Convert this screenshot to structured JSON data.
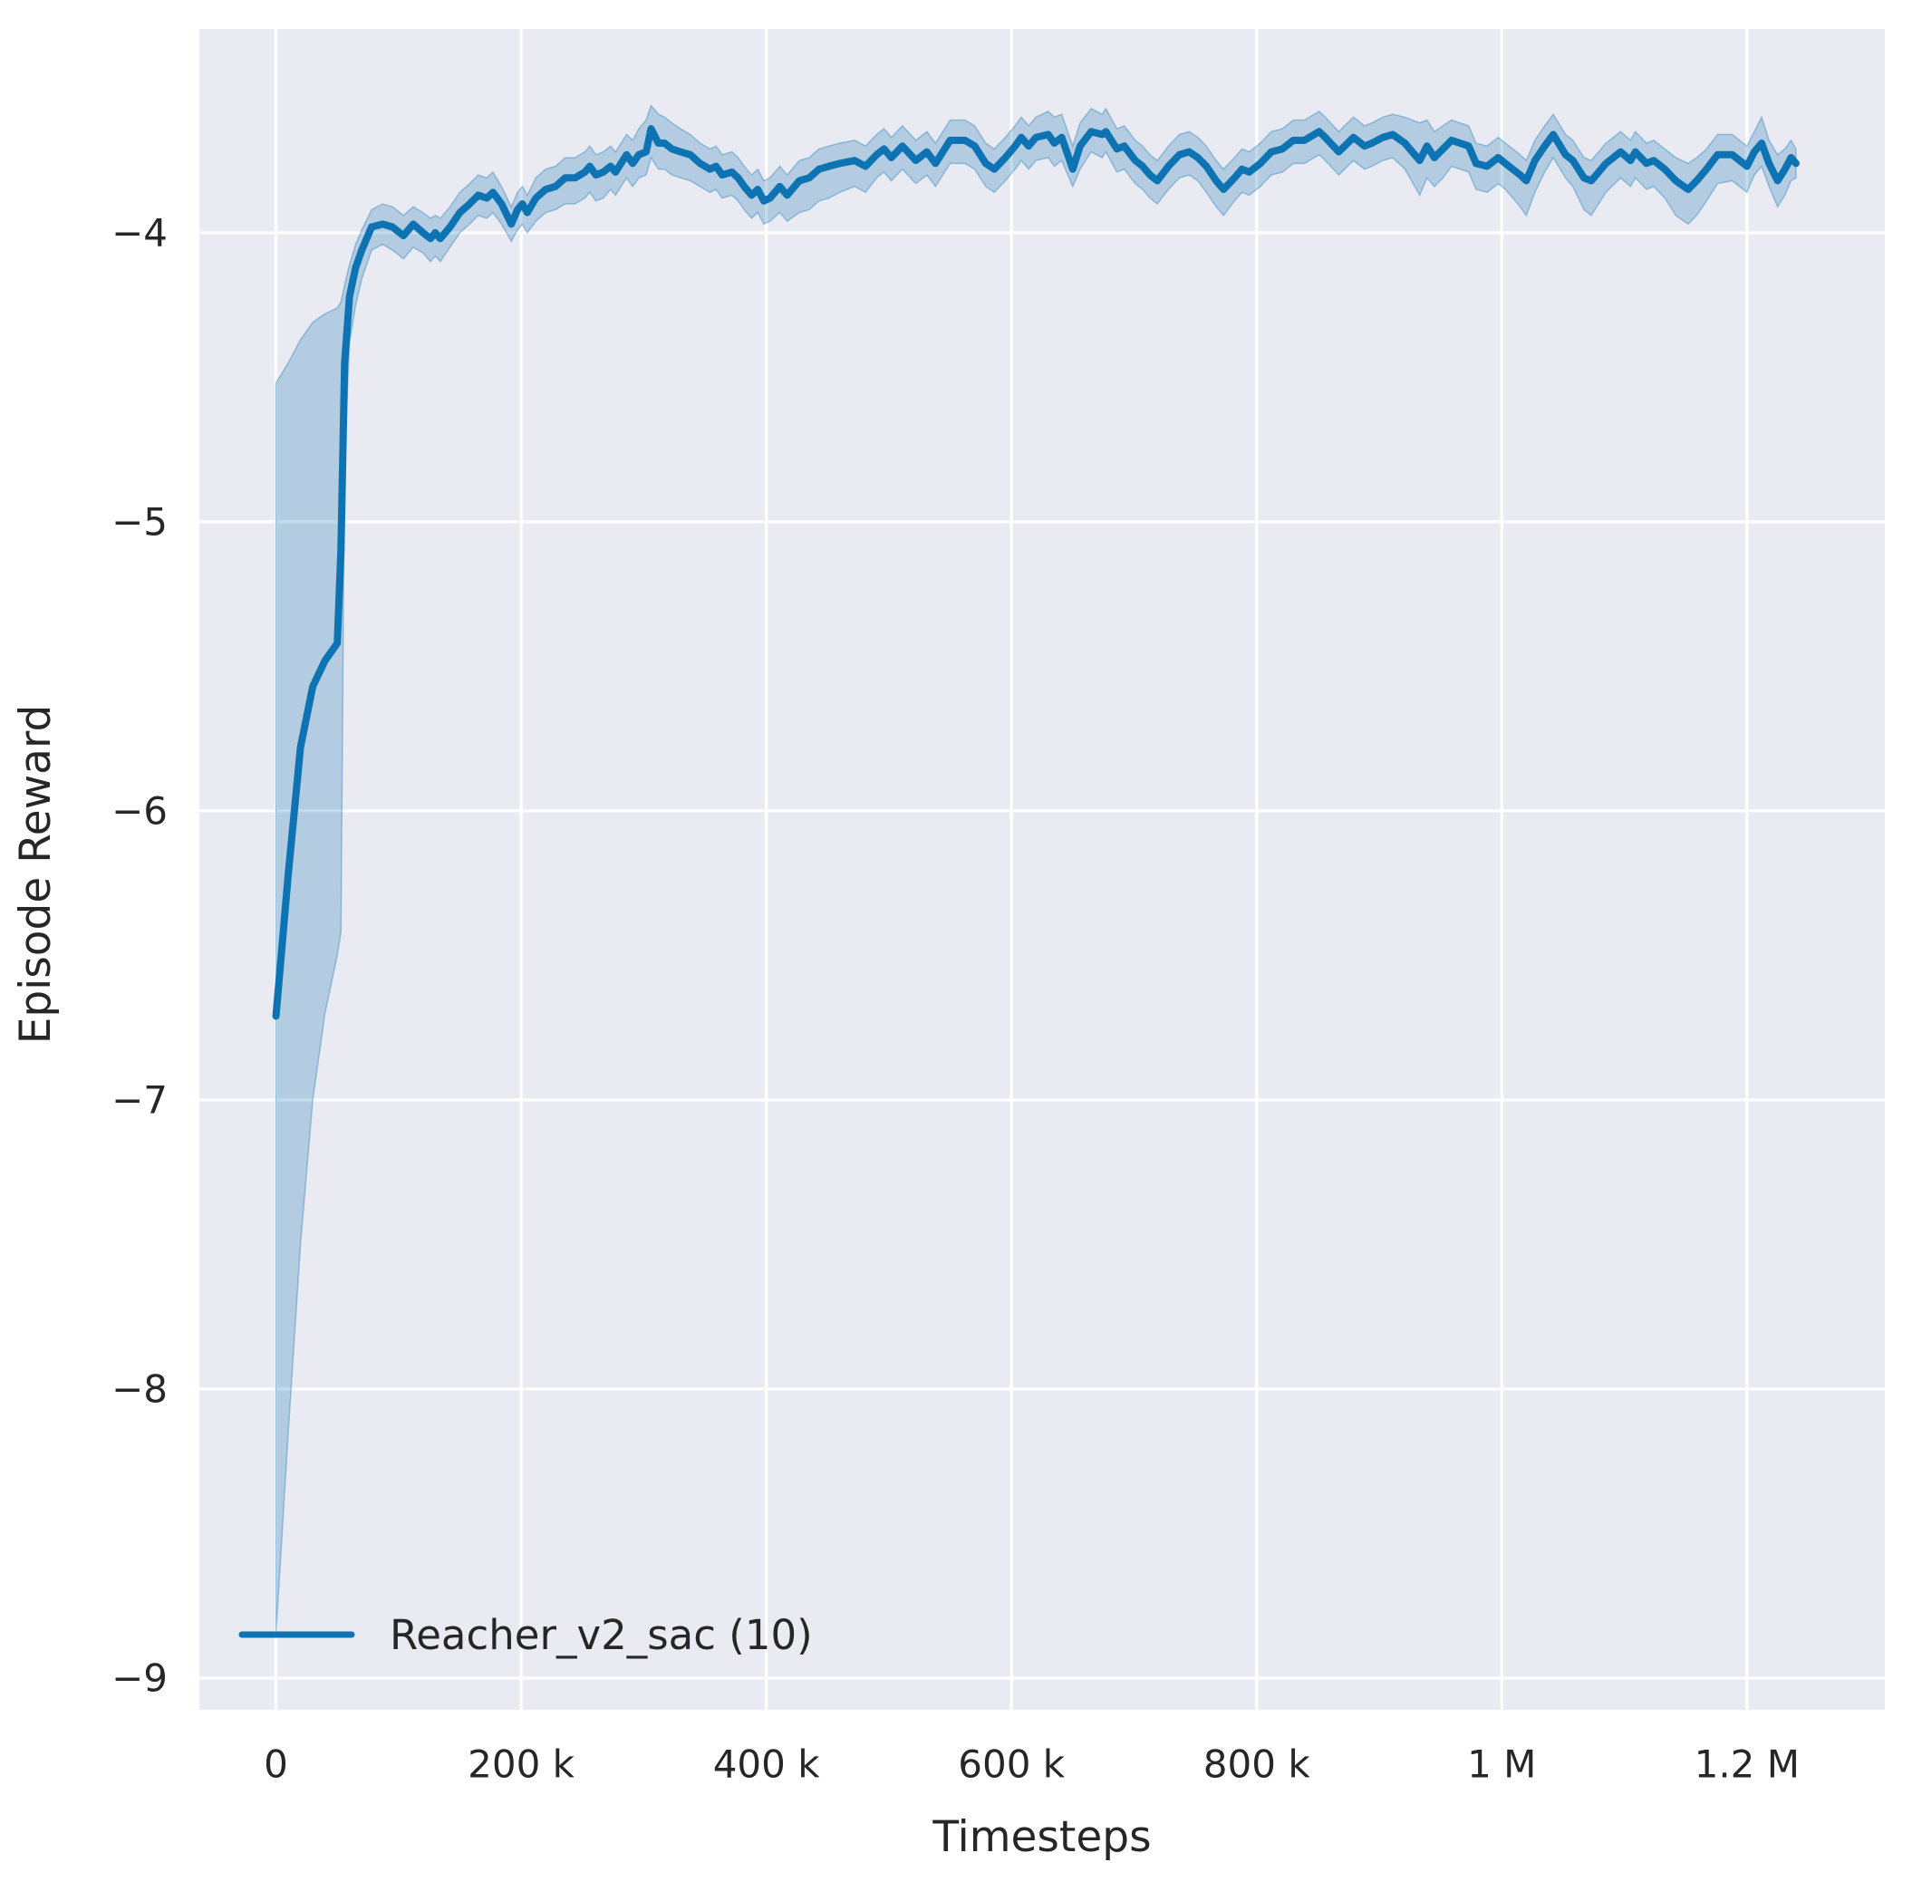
{
  "style": {
    "figure_background": "#ffffff",
    "axes_background": "#eaeaf2",
    "grid_color": "#ffffff",
    "text_color": "#262626",
    "line_color": "#0e73b2",
    "band_fill": "rgba(14,115,178,0.25)",
    "band_edge": "rgba(14,115,178,0.35)"
  },
  "chart_data": {
    "type": "line",
    "title": "",
    "xlabel": "Timesteps",
    "ylabel": "Episode Reward",
    "grid": true,
    "legend_position": "lower left",
    "legend": [
      {
        "label": "Reacher_v2_sac (10)",
        "color": "#0e73b2"
      }
    ],
    "xlim": [
      -62500,
      1312500
    ],
    "ylim": [
      -9.11,
      -3.295
    ],
    "x_ticks": [
      {
        "value": 0,
        "label": "0"
      },
      {
        "value": 200000,
        "label": "200 k"
      },
      {
        "value": 400000,
        "label": "400 k"
      },
      {
        "value": 600000,
        "label": "600 k"
      },
      {
        "value": 800000,
        "label": "800 k"
      },
      {
        "value": 1000000,
        "label": "1 M"
      },
      {
        "value": 1200000,
        "label": "1.2 M"
      }
    ],
    "y_ticks": [
      {
        "value": -4,
        "label": "−4"
      },
      {
        "value": -5,
        "label": "−5"
      },
      {
        "value": -6,
        "label": "−6"
      },
      {
        "value": -7,
        "label": "−7"
      },
      {
        "value": -8,
        "label": "−8"
      },
      {
        "value": -9,
        "label": "−9"
      }
    ],
    "series": [
      {
        "name": "Reacher_v2_sac (10)",
        "x_unit": "thousand timesteps",
        "note": "points are [x_thousand_timesteps, mean, band_low, band_high]",
        "points": [
          [
            0,
            -6.71,
            -8.85,
            -4.52
          ],
          [
            10,
            -6.22,
            -8.15,
            -4.45
          ],
          [
            20,
            -5.78,
            -7.5,
            -4.37
          ],
          [
            30,
            -5.57,
            -7.0,
            -4.31
          ],
          [
            40,
            -5.48,
            -6.7,
            -4.28
          ],
          [
            50,
            -5.42,
            -6.5,
            -4.26
          ],
          [
            53,
            -5.1,
            -6.42,
            -4.24
          ],
          [
            56,
            -4.45,
            -4.78,
            -4.18
          ],
          [
            60,
            -4.22,
            -4.38,
            -4.11
          ],
          [
            65,
            -4.12,
            -4.25,
            -4.04
          ],
          [
            70,
            -4.06,
            -4.16,
            -3.99
          ],
          [
            78,
            -3.98,
            -4.06,
            -3.92
          ],
          [
            87,
            -3.97,
            -4.04,
            -3.9
          ],
          [
            95,
            -3.98,
            -4.06,
            -3.91
          ],
          [
            104,
            -4.01,
            -4.09,
            -3.94
          ],
          [
            112,
            -3.97,
            -4.05,
            -3.91
          ],
          [
            120,
            -4.0,
            -4.07,
            -3.93
          ],
          [
            126,
            -4.02,
            -4.1,
            -3.95
          ],
          [
            130,
            -4.0,
            -4.08,
            -3.94
          ],
          [
            134,
            -4.02,
            -4.1,
            -3.95
          ],
          [
            142,
            -3.98,
            -4.05,
            -3.91
          ],
          [
            150,
            -3.93,
            -4.0,
            -3.86
          ],
          [
            158,
            -3.9,
            -3.97,
            -3.83
          ],
          [
            165,
            -3.87,
            -3.94,
            -3.8
          ],
          [
            172,
            -3.88,
            -3.95,
            -3.81
          ],
          [
            177,
            -3.86,
            -3.93,
            -3.79
          ],
          [
            184,
            -3.9,
            -3.97,
            -3.84
          ],
          [
            192,
            -3.97,
            -4.03,
            -3.91
          ],
          [
            197,
            -3.92,
            -3.99,
            -3.86
          ],
          [
            201,
            -3.9,
            -3.97,
            -3.84
          ],
          [
            205,
            -3.93,
            -4.0,
            -3.87
          ],
          [
            212,
            -3.88,
            -3.96,
            -3.81
          ],
          [
            220,
            -3.85,
            -3.93,
            -3.78
          ],
          [
            228,
            -3.84,
            -3.92,
            -3.77
          ],
          [
            236,
            -3.81,
            -3.9,
            -3.74
          ],
          [
            244,
            -3.81,
            -3.9,
            -3.74
          ],
          [
            252,
            -3.79,
            -3.88,
            -3.72
          ],
          [
            256,
            -3.77,
            -3.86,
            -3.7
          ],
          [
            261,
            -3.8,
            -3.89,
            -3.73
          ],
          [
            267,
            -3.79,
            -3.88,
            -3.72
          ],
          [
            273,
            -3.77,
            -3.85,
            -3.7
          ],
          [
            277,
            -3.79,
            -3.87,
            -3.72
          ],
          [
            283,
            -3.75,
            -3.83,
            -3.68
          ],
          [
            286,
            -3.73,
            -3.81,
            -3.66
          ],
          [
            291,
            -3.76,
            -3.84,
            -3.68
          ],
          [
            296,
            -3.73,
            -3.81,
            -3.64
          ],
          [
            302,
            -3.72,
            -3.8,
            -3.61
          ],
          [
            306,
            -3.64,
            -3.74,
            -3.56
          ],
          [
            312,
            -3.69,
            -3.78,
            -3.59
          ],
          [
            317,
            -3.69,
            -3.78,
            -3.6
          ],
          [
            323,
            -3.71,
            -3.8,
            -3.62
          ],
          [
            330,
            -3.72,
            -3.81,
            -3.64
          ],
          [
            338,
            -3.73,
            -3.82,
            -3.66
          ],
          [
            346,
            -3.76,
            -3.84,
            -3.69
          ],
          [
            354,
            -3.78,
            -3.86,
            -3.71
          ],
          [
            359,
            -3.77,
            -3.85,
            -3.7
          ],
          [
            364,
            -3.8,
            -3.88,
            -3.73
          ],
          [
            372,
            -3.79,
            -3.87,
            -3.72
          ],
          [
            377,
            -3.81,
            -3.89,
            -3.74
          ],
          [
            382,
            -3.84,
            -3.92,
            -3.77
          ],
          [
            388,
            -3.87,
            -3.95,
            -3.8
          ],
          [
            393,
            -3.85,
            -3.93,
            -3.78
          ],
          [
            398,
            -3.89,
            -3.97,
            -3.82
          ],
          [
            403,
            -3.88,
            -3.96,
            -3.81
          ],
          [
            411,
            -3.84,
            -3.93,
            -3.77
          ],
          [
            417,
            -3.87,
            -3.96,
            -3.8
          ],
          [
            427,
            -3.82,
            -3.93,
            -3.75
          ],
          [
            435,
            -3.81,
            -3.92,
            -3.74
          ],
          [
            443,
            -3.78,
            -3.89,
            -3.71
          ],
          [
            451,
            -3.77,
            -3.88,
            -3.7
          ],
          [
            460,
            -3.76,
            -3.86,
            -3.69
          ],
          [
            472,
            -3.75,
            -3.84,
            -3.68
          ],
          [
            481,
            -3.77,
            -3.86,
            -3.7
          ],
          [
            490,
            -3.73,
            -3.81,
            -3.66
          ],
          [
            496,
            -3.71,
            -3.79,
            -3.64
          ],
          [
            502,
            -3.74,
            -3.82,
            -3.67
          ],
          [
            511,
            -3.7,
            -3.78,
            -3.63
          ],
          [
            522,
            -3.75,
            -3.83,
            -3.68
          ],
          [
            531,
            -3.72,
            -3.8,
            -3.65
          ],
          [
            538,
            -3.76,
            -3.84,
            -3.69
          ],
          [
            550,
            -3.68,
            -3.76,
            -3.61
          ],
          [
            562,
            -3.68,
            -3.76,
            -3.61
          ],
          [
            570,
            -3.7,
            -3.78,
            -3.63
          ],
          [
            579,
            -3.76,
            -3.84,
            -3.69
          ],
          [
            586,
            -3.78,
            -3.86,
            -3.71
          ],
          [
            595,
            -3.74,
            -3.82,
            -3.67
          ],
          [
            603,
            -3.7,
            -3.78,
            -3.63
          ],
          [
            608,
            -3.67,
            -3.75,
            -3.6
          ],
          [
            614,
            -3.7,
            -3.78,
            -3.63
          ],
          [
            620,
            -3.67,
            -3.75,
            -3.6
          ],
          [
            630,
            -3.66,
            -3.74,
            -3.58
          ],
          [
            635,
            -3.69,
            -3.77,
            -3.6
          ],
          [
            641,
            -3.67,
            -3.75,
            -3.59
          ],
          [
            650,
            -3.78,
            -3.84,
            -3.7
          ],
          [
            656,
            -3.7,
            -3.78,
            -3.62
          ],
          [
            665,
            -3.65,
            -3.72,
            -3.57
          ],
          [
            674,
            -3.66,
            -3.74,
            -3.59
          ],
          [
            677,
            -3.65,
            -3.72,
            -3.57
          ],
          [
            686,
            -3.71,
            -3.79,
            -3.64
          ],
          [
            692,
            -3.7,
            -3.78,
            -3.63
          ],
          [
            701,
            -3.75,
            -3.83,
            -3.68
          ],
          [
            707,
            -3.77,
            -3.85,
            -3.7
          ],
          [
            713,
            -3.8,
            -3.88,
            -3.73
          ],
          [
            719,
            -3.82,
            -3.9,
            -3.75
          ],
          [
            728,
            -3.77,
            -3.85,
            -3.7
          ],
          [
            737,
            -3.73,
            -3.81,
            -3.66
          ],
          [
            745,
            -3.72,
            -3.8,
            -3.65
          ],
          [
            752,
            -3.74,
            -3.82,
            -3.67
          ],
          [
            759,
            -3.77,
            -3.86,
            -3.7
          ],
          [
            767,
            -3.82,
            -3.91,
            -3.75
          ],
          [
            773,
            -3.85,
            -3.94,
            -3.78
          ],
          [
            782,
            -3.81,
            -3.89,
            -3.74
          ],
          [
            788,
            -3.78,
            -3.86,
            -3.71
          ],
          [
            794,
            -3.79,
            -3.87,
            -3.72
          ],
          [
            803,
            -3.76,
            -3.84,
            -3.69
          ],
          [
            812,
            -3.72,
            -3.8,
            -3.65
          ],
          [
            821,
            -3.71,
            -3.79,
            -3.64
          ],
          [
            830,
            -3.68,
            -3.76,
            -3.61
          ],
          [
            839,
            -3.68,
            -3.76,
            -3.61
          ],
          [
            851,
            -3.65,
            -3.73,
            -3.58
          ],
          [
            856,
            -3.67,
            -3.75,
            -3.6
          ],
          [
            867,
            -3.72,
            -3.8,
            -3.65
          ],
          [
            879,
            -3.67,
            -3.75,
            -3.6
          ],
          [
            888,
            -3.7,
            -3.78,
            -3.63
          ],
          [
            894,
            -3.69,
            -3.77,
            -3.62
          ],
          [
            903,
            -3.67,
            -3.75,
            -3.6
          ],
          [
            911,
            -3.66,
            -3.74,
            -3.59
          ],
          [
            921,
            -3.69,
            -3.78,
            -3.6
          ],
          [
            933,
            -3.75,
            -3.87,
            -3.62
          ],
          [
            939,
            -3.7,
            -3.81,
            -3.61
          ],
          [
            945,
            -3.74,
            -3.84,
            -3.65
          ],
          [
            952,
            -3.71,
            -3.81,
            -3.63
          ],
          [
            959,
            -3.68,
            -3.77,
            -3.61
          ],
          [
            973,
            -3.7,
            -3.79,
            -3.63
          ],
          [
            979,
            -3.76,
            -3.85,
            -3.69
          ],
          [
            988,
            -3.77,
            -3.86,
            -3.7
          ],
          [
            997,
            -3.74,
            -3.83,
            -3.67
          ],
          [
            1003,
            -3.76,
            -3.85,
            -3.69
          ],
          [
            1015,
            -3.8,
            -3.91,
            -3.73
          ],
          [
            1020,
            -3.82,
            -3.94,
            -3.75
          ],
          [
            1027,
            -3.75,
            -3.86,
            -3.68
          ],
          [
            1035,
            -3.7,
            -3.79,
            -3.63
          ],
          [
            1042,
            -3.66,
            -3.74,
            -3.59
          ],
          [
            1052,
            -3.73,
            -3.81,
            -3.66
          ],
          [
            1058,
            -3.75,
            -3.84,
            -3.68
          ],
          [
            1067,
            -3.81,
            -3.92,
            -3.74
          ],
          [
            1073,
            -3.82,
            -3.94,
            -3.75
          ],
          [
            1079,
            -3.79,
            -3.9,
            -3.72
          ],
          [
            1085,
            -3.76,
            -3.86,
            -3.69
          ],
          [
            1097,
            -3.72,
            -3.81,
            -3.65
          ],
          [
            1105,
            -3.75,
            -3.84,
            -3.68
          ],
          [
            1109,
            -3.72,
            -3.81,
            -3.65
          ],
          [
            1118,
            -3.76,
            -3.85,
            -3.69
          ],
          [
            1124,
            -3.75,
            -3.84,
            -3.68
          ],
          [
            1133,
            -3.78,
            -3.88,
            -3.71
          ],
          [
            1142,
            -3.82,
            -3.94,
            -3.74
          ],
          [
            1152,
            -3.85,
            -3.97,
            -3.76
          ],
          [
            1159,
            -3.82,
            -3.94,
            -3.74
          ],
          [
            1167,
            -3.78,
            -3.89,
            -3.71
          ],
          [
            1176,
            -3.73,
            -3.83,
            -3.66
          ],
          [
            1188,
            -3.73,
            -3.82,
            -3.66
          ],
          [
            1194,
            -3.75,
            -3.84,
            -3.68
          ],
          [
            1200,
            -3.77,
            -3.86,
            -3.7
          ],
          [
            1206,
            -3.72,
            -3.8,
            -3.65
          ],
          [
            1212,
            -3.69,
            -3.77,
            -3.6
          ],
          [
            1218,
            -3.76,
            -3.84,
            -3.68
          ],
          [
            1225,
            -3.82,
            -3.91,
            -3.73
          ],
          [
            1231,
            -3.78,
            -3.87,
            -3.71
          ],
          [
            1236,
            -3.74,
            -3.82,
            -3.68
          ],
          [
            1240,
            -3.76,
            -3.81,
            -3.71
          ]
        ]
      }
    ]
  }
}
